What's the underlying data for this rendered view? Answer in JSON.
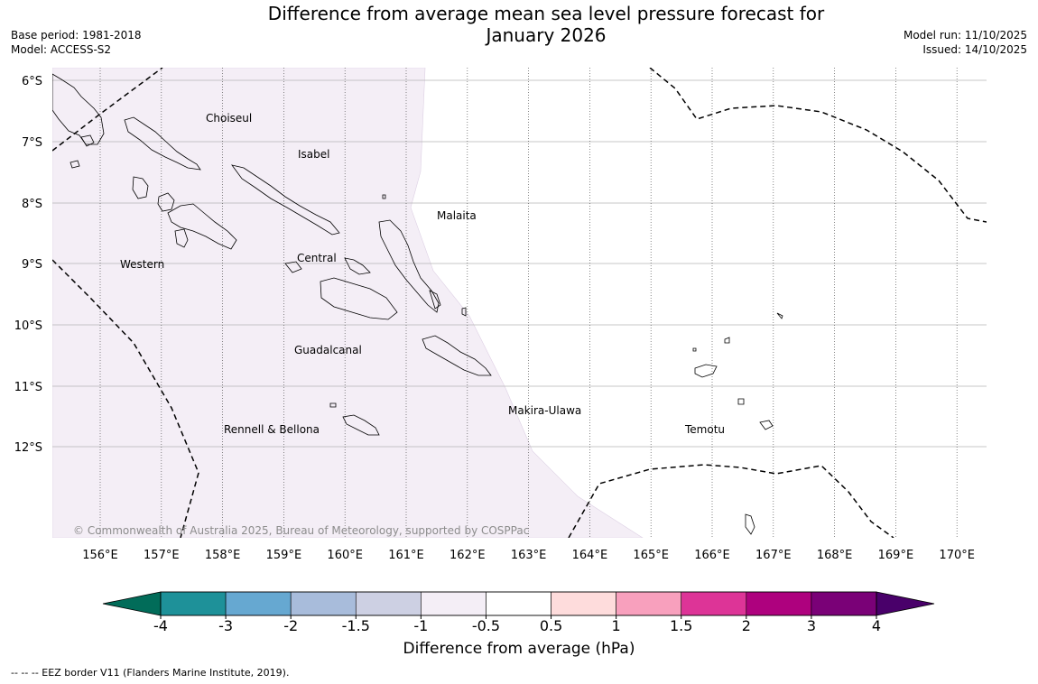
{
  "title": {
    "line1": "Difference from average mean sea level pressure forecast for",
    "line2": "January 2026"
  },
  "meta": {
    "base_period": "Base period: 1981-2018",
    "model": "Model: ACCESS-S2",
    "model_run": "Model run: 11/10/2025",
    "issued": "Issued: 14/10/2025"
  },
  "map": {
    "lat_labels": [
      "6°S",
      "7°S",
      "8°S",
      "9°S",
      "10°S",
      "11°S",
      "12°S"
    ],
    "lon_labels": [
      "156°E",
      "157°E",
      "158°E",
      "159°E",
      "160°E",
      "161°E",
      "162°E",
      "163°E",
      "164°E",
      "165°E",
      "166°E",
      "167°E",
      "168°E",
      "169°E",
      "170°E"
    ],
    "places": {
      "choiseul": "Choiseul",
      "isabel": "Isabel",
      "malaita": "Malaita",
      "western": "Western",
      "central": "Central",
      "guadalcanal": "Guadalcanal",
      "makira": "Makira-Ulawa",
      "rennell": "Rennell & Bellona",
      "temotu": "Temotu"
    },
    "copyright": "© Commonwealth of Australia 2025, Bureau of Meteorology, supported by COSPPac",
    "anomaly_fill_color": "#f4eef6",
    "anomaly_class": "-1 to -0.5 hPa"
  },
  "colorbar": {
    "ticks": [
      "-4",
      "-3",
      "-2",
      "-1.5",
      "-1",
      "-0.5",
      "0.5",
      "1",
      "1.5",
      "2",
      "3",
      "4"
    ],
    "colors": [
      "#1e9199",
      "#66a8d1",
      "#a8bcdb",
      "#cdd0e3",
      "#f4eef6",
      "#ffffff",
      "#fedcdc",
      "#f8a0bd",
      "#dd3497",
      "#ae017e",
      "#7a0177"
    ],
    "low_extend_color": "#016c59",
    "high_extend_color": "#49006a",
    "label": "Difference from average (hPa)"
  },
  "footnote": "--  --  -- EEZ border V11 (Flanders Marine Institute, 2019)."
}
